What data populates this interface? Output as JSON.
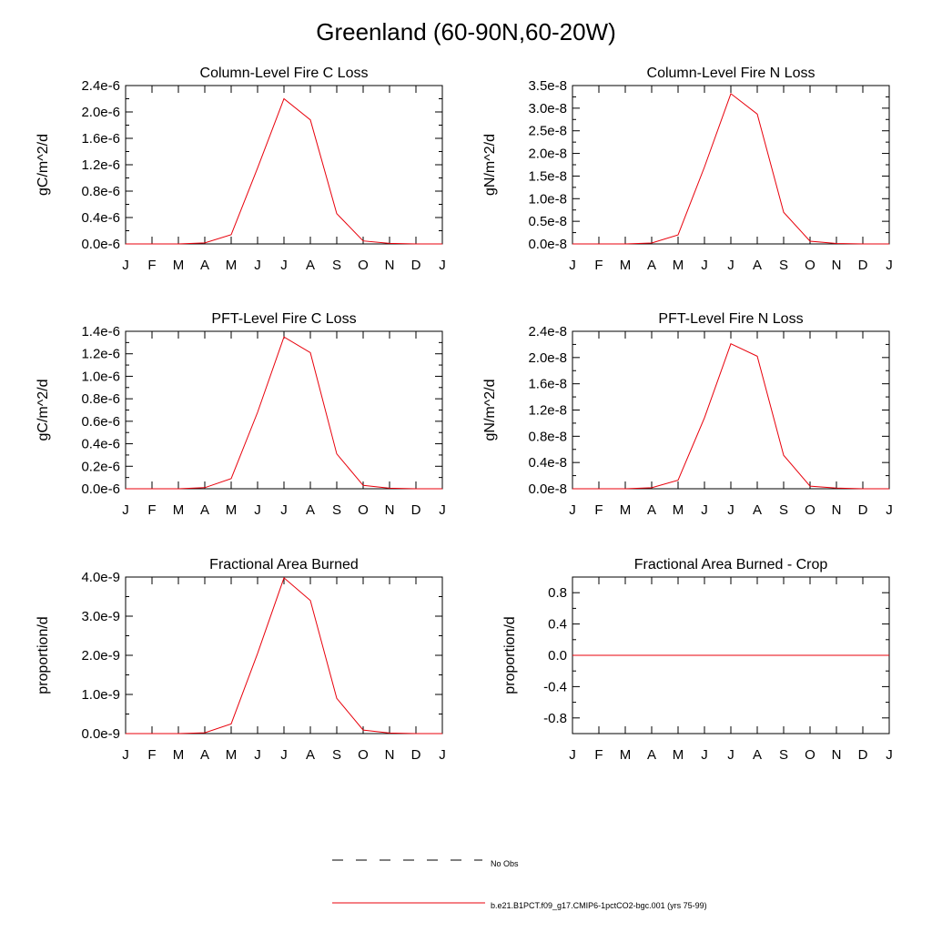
{
  "figure": {
    "title": "Greenland (60-90N,60-20W)"
  },
  "legend": {
    "obs_label": "No Obs",
    "model_label": "b.e21.B1PCT.f09_g17.CMIP6-1pctCO2-bgc.001 (yrs 75-99)",
    "model_color": "#e8000b",
    "obs_color": "#000000"
  },
  "chart_data": [
    {
      "type": "line",
      "title": "Column-Level Fire C Loss",
      "ylabel": "gC/m^2/d",
      "categories": [
        "J",
        "F",
        "M",
        "A",
        "M",
        "J",
        "J",
        "A",
        "S",
        "O",
        "N",
        "D",
        "J"
      ],
      "ylim": [
        0,
        2.4e-06
      ],
      "yticks": [
        0,
        4e-07,
        8e-07,
        1.2e-06,
        1.6e-06,
        2e-06,
        2.4e-06
      ],
      "ytick_labels": [
        "0.0e-6",
        "0.4e-6",
        "0.8e-6",
        "1.2e-6",
        "1.6e-6",
        "2.0e-6",
        "2.4e-6"
      ],
      "series": [
        {
          "values": [
            0,
            0,
            0,
            1.5e-08,
            1.4e-07,
            1.15e-06,
            2.2e-06,
            1.88e-06,
            4.6e-07,
            4.5e-08,
            8e-09,
            0,
            0
          ]
        }
      ]
    },
    {
      "type": "line",
      "title": "Column-Level Fire N Loss",
      "ylabel": "gN/m^2/d",
      "categories": [
        "J",
        "F",
        "M",
        "A",
        "M",
        "J",
        "J",
        "A",
        "S",
        "O",
        "N",
        "D",
        "J"
      ],
      "ylim": [
        0,
        3.5e-08
      ],
      "yticks": [
        0,
        5e-09,
        1e-08,
        1.5e-08,
        2e-08,
        2.5e-08,
        3e-08,
        3.5e-08
      ],
      "ytick_labels": [
        "0.0e-8",
        "0.5e-8",
        "1.0e-8",
        "1.5e-8",
        "2.0e-8",
        "2.5e-8",
        "3.0e-8",
        "3.5e-8"
      ],
      "series": [
        {
          "values": [
            0,
            0,
            0,
            2e-10,
            2e-09,
            1.7e-08,
            3.32e-08,
            2.87e-08,
            7e-09,
            6e-10,
            1e-10,
            0,
            0
          ]
        }
      ]
    },
    {
      "type": "line",
      "title": "PFT-Level Fire C Loss",
      "ylabel": "gC/m^2/d",
      "categories": [
        "J",
        "F",
        "M",
        "A",
        "M",
        "J",
        "J",
        "A",
        "S",
        "O",
        "N",
        "D",
        "J"
      ],
      "ylim": [
        0,
        1.4e-06
      ],
      "yticks": [
        0,
        2e-07,
        4e-07,
        6e-07,
        8e-07,
        1e-06,
        1.2e-06,
        1.4e-06
      ],
      "ytick_labels": [
        "0.0e-6",
        "0.2e-6",
        "0.4e-6",
        "0.6e-6",
        "0.8e-6",
        "1.0e-6",
        "1.2e-6",
        "1.4e-6"
      ],
      "series": [
        {
          "values": [
            0,
            0,
            0,
            1e-08,
            9e-08,
            6.8e-07,
            1.35e-06,
            1.21e-06,
            3.1e-07,
            3e-08,
            5e-09,
            0,
            0
          ]
        }
      ]
    },
    {
      "type": "line",
      "title": "PFT-Level Fire N Loss",
      "ylabel": "gN/m^2/d",
      "categories": [
        "J",
        "F",
        "M",
        "A",
        "M",
        "J",
        "J",
        "A",
        "S",
        "O",
        "N",
        "D",
        "J"
      ],
      "ylim": [
        0,
        2.4e-08
      ],
      "yticks": [
        0,
        4e-09,
        8e-09,
        1.2e-08,
        1.6e-08,
        2e-08,
        2.4e-08
      ],
      "ytick_labels": [
        "0.0e-8",
        "0.4e-8",
        "0.8e-8",
        "1.2e-8",
        "1.6e-8",
        "2.0e-8",
        "2.4e-8"
      ],
      "series": [
        {
          "values": [
            0,
            0,
            0,
            1.5e-10,
            1.3e-09,
            1.08e-08,
            2.21e-08,
            2.02e-08,
            5.1e-09,
            4e-10,
            1e-10,
            0,
            0
          ]
        }
      ]
    },
    {
      "type": "line",
      "title": "Fractional Area Burned",
      "ylabel": "proportion/d",
      "categories": [
        "J",
        "F",
        "M",
        "A",
        "M",
        "J",
        "J",
        "A",
        "S",
        "O",
        "N",
        "D",
        "J"
      ],
      "ylim": [
        0,
        4e-09
      ],
      "yticks": [
        0,
        1e-09,
        2e-09,
        3e-09,
        4e-09
      ],
      "ytick_labels": [
        "0.0e-9",
        "1.0e-9",
        "2.0e-9",
        "3.0e-9",
        "4.0e-9"
      ],
      "series": [
        {
          "values": [
            0,
            0,
            0,
            2e-11,
            2.5e-10,
            2.05e-09,
            3.98e-09,
            3.4e-09,
            9e-10,
            9e-11,
            1.5e-11,
            0,
            0
          ]
        }
      ]
    },
    {
      "type": "line",
      "title": "Fractional Area Burned - Crop",
      "ylabel": "proportion/d",
      "categories": [
        "J",
        "F",
        "M",
        "A",
        "M",
        "J",
        "J",
        "A",
        "S",
        "O",
        "N",
        "D",
        "J"
      ],
      "ylim": [
        -1.0,
        1.0
      ],
      "yticks": [
        -0.8,
        -0.4,
        0.0,
        0.4,
        0.8
      ],
      "ytick_labels": [
        "-0.8",
        "-0.4",
        "0.0",
        "0.4",
        "0.8"
      ],
      "series": [
        {
          "values": [
            0,
            0,
            0,
            0,
            0,
            0,
            0,
            0,
            0,
            0,
            0,
            0,
            0
          ]
        }
      ]
    }
  ]
}
